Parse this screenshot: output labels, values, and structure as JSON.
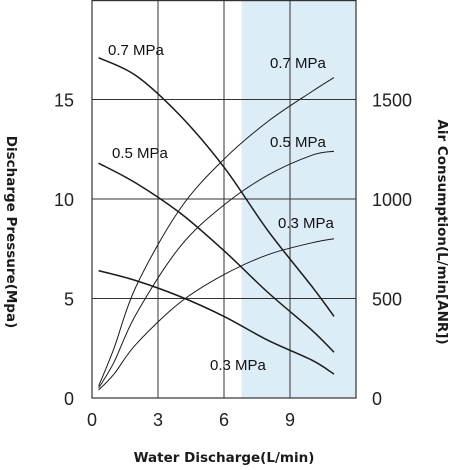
{
  "chart_data": {
    "type": "line",
    "xlabel": "Water Discharge(L/min)",
    "ylabel_left": "Discharge Pressure(Mpa)",
    "ylabel_right": "Air Consumption(L/min[ANR])",
    "xlim": [
      0,
      12
    ],
    "ylim_left": [
      0,
      20
    ],
    "ylim_right": [
      0,
      2000
    ],
    "x_ticks": [
      "0",
      "3",
      "6",
      "9"
    ],
    "y_left_ticks": [
      "0",
      "5",
      "10",
      "15"
    ],
    "y_right_ticks": [
      "0",
      "500",
      "1000",
      "1500"
    ],
    "grid": {
      "vertical": [
        3,
        6,
        9
      ],
      "horizontal": [
        5,
        10,
        15
      ]
    },
    "highlight_region": {
      "x": [
        6.8,
        12
      ],
      "color": "#dcedf8"
    },
    "series": [
      {
        "name": "0.7 MPa",
        "axis": "left",
        "x": [
          0.3,
          2,
          4,
          6,
          8,
          10,
          11
        ],
        "y": [
          17.1,
          16.2,
          14.2,
          11.6,
          8.4,
          5.6,
          4.1
        ]
      },
      {
        "name": "0.5 MPa",
        "axis": "left",
        "x": [
          0.3,
          2,
          4,
          6,
          8,
          10,
          11
        ],
        "y": [
          11.8,
          10.8,
          9.3,
          7.4,
          5.3,
          3.4,
          2.3
        ]
      },
      {
        "name": "0.3 MPa",
        "axis": "left",
        "x": [
          0.3,
          2,
          4,
          6,
          8,
          10,
          11
        ],
        "y": [
          6.4,
          5.9,
          5.1,
          4.1,
          2.9,
          1.9,
          1.2
        ]
      },
      {
        "name": "0.7 MPa",
        "axis": "right",
        "x": [
          0.3,
          1,
          2,
          4,
          6,
          8,
          10,
          11
        ],
        "y": [
          60,
          250,
          560,
          950,
          1200,
          1390,
          1540,
          1610
        ]
      },
      {
        "name": "0.5 MPa",
        "axis": "right",
        "x": [
          0.3,
          1,
          2,
          4,
          6,
          8,
          10,
          11
        ],
        "y": [
          50,
          180,
          420,
          760,
          970,
          1120,
          1220,
          1240
        ]
      },
      {
        "name": "0.3 MPa",
        "axis": "right",
        "x": [
          0.3,
          1,
          2,
          4,
          6,
          8,
          10,
          11
        ],
        "y": [
          40,
          120,
          270,
          480,
          620,
          720,
          780,
          800
        ]
      }
    ],
    "series_labels": [
      "0.7 MPa",
      "0.5 MPa",
      "0.3 MPa",
      "0.7 MPa",
      "0.5 MPa",
      "0.3 MPa"
    ],
    "colors": {
      "curve": "#1a1a1a",
      "grid": "#333333"
    }
  }
}
